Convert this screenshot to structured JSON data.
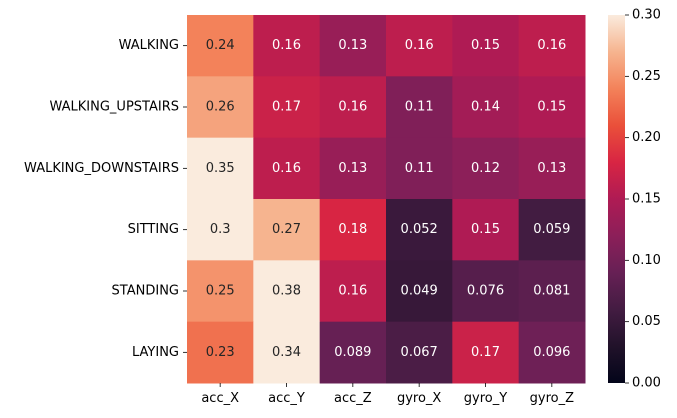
{
  "chart_data": {
    "type": "heatmap",
    "title": "",
    "xlabel": "",
    "ylabel": "",
    "x_categories": [
      "acc_X",
      "acc_Y",
      "acc_Z",
      "gyro_X",
      "gyro_Y",
      "gyro_Z"
    ],
    "y_categories": [
      "WALKING",
      "WALKING_UPSTAIRS",
      "WALKING_DOWNSTAIRS",
      "SITTING",
      "STANDING",
      "LAYING"
    ],
    "values": [
      [
        0.24,
        0.16,
        0.13,
        0.16,
        0.15,
        0.16
      ],
      [
        0.26,
        0.17,
        0.16,
        0.11,
        0.14,
        0.15
      ],
      [
        0.35,
        0.16,
        0.13,
        0.11,
        0.12,
        0.13
      ],
      [
        0.3,
        0.27,
        0.18,
        0.052,
        0.15,
        0.059
      ],
      [
        0.25,
        0.38,
        0.16,
        0.049,
        0.076,
        0.081
      ],
      [
        0.23,
        0.34,
        0.089,
        0.067,
        0.17,
        0.096
      ]
    ],
    "labels": [
      [
        "0.24",
        "0.16",
        "0.13",
        "0.16",
        "0.15",
        "0.16"
      ],
      [
        "0.26",
        "0.17",
        "0.16",
        "0.11",
        "0.14",
        "0.15"
      ],
      [
        "0.35",
        "0.16",
        "0.13",
        "0.11",
        "0.12",
        "0.13"
      ],
      [
        "0.3",
        "0.27",
        "0.18",
        "0.052",
        "0.15",
        "0.059"
      ],
      [
        "0.25",
        "0.38",
        "0.16",
        "0.049",
        "0.076",
        "0.081"
      ],
      [
        "0.23",
        "0.34",
        "0.089",
        "0.067",
        "0.17",
        "0.096"
      ]
    ],
    "colorbar": {
      "vmin": 0.0,
      "vmax": 0.3,
      "ticks": [
        0.0,
        0.05,
        0.1,
        0.15,
        0.2,
        0.25,
        0.3
      ],
      "tick_labels": [
        "0.00",
        "0.05",
        "0.10",
        "0.15",
        "0.20",
        "0.25",
        "0.30"
      ],
      "colormap": "rocket"
    },
    "legend": "colorbar-right"
  }
}
